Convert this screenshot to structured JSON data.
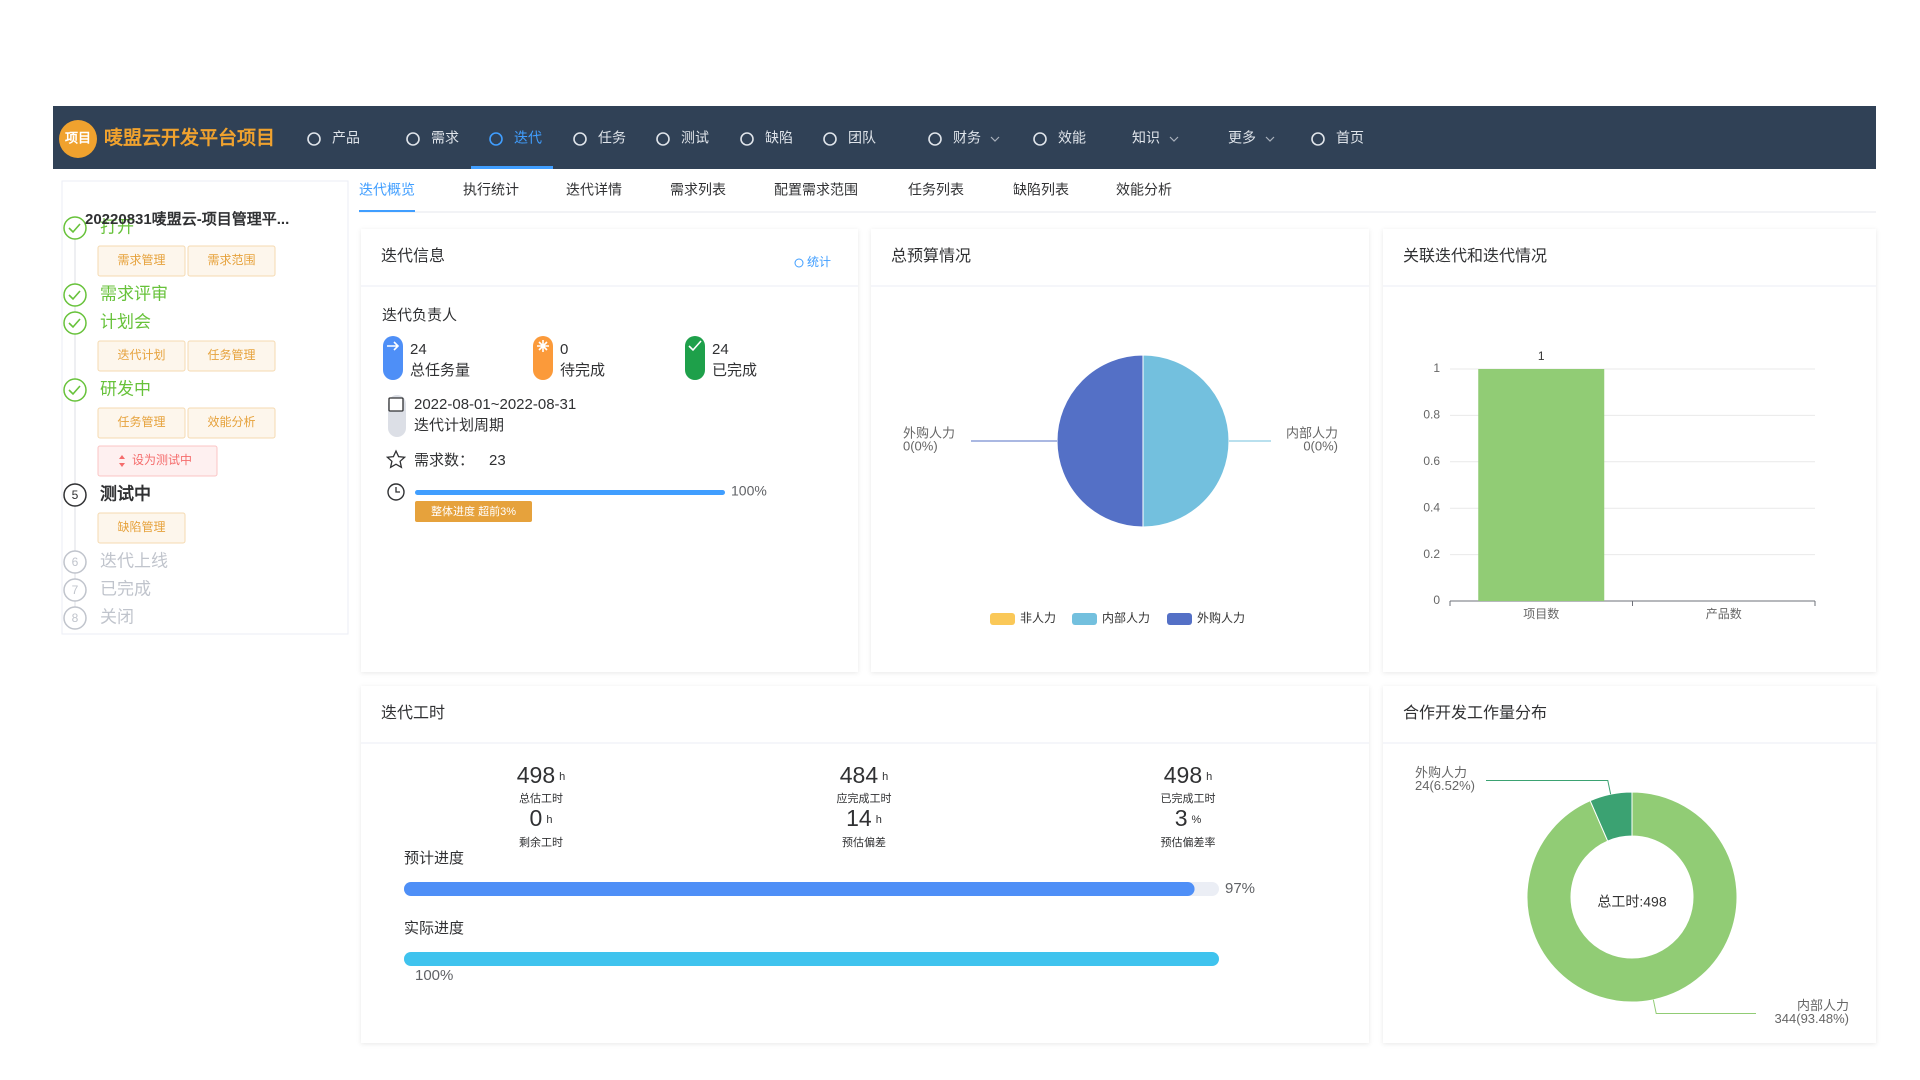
{
  "nav": {
    "logo": "项目",
    "title": "唛盟云开发平台项目",
    "active": 2,
    "items": [
      {
        "label": "产品"
      },
      {
        "label": "需求"
      },
      {
        "label": "迭代"
      },
      {
        "label": "任务"
      },
      {
        "label": "测试"
      },
      {
        "label": "缺陷"
      },
      {
        "label": "团队"
      },
      {
        "label": "财务",
        "dropdown": true
      },
      {
        "label": "效能"
      },
      {
        "label": "知识",
        "dropdown": true,
        "icon": false
      },
      {
        "label": "更多",
        "dropdown": true,
        "icon": false
      },
      {
        "label": "首页"
      }
    ]
  },
  "sidebar": {
    "title": "20220831唛盟云-项目管理平...",
    "steps": [
      {
        "label": "打开",
        "status": "done",
        "buttons": [
          "需求管理",
          "需求范围"
        ]
      },
      {
        "label": "需求评审",
        "status": "done"
      },
      {
        "label": "计划会",
        "status": "done",
        "buttons": [
          "迭代计划",
          "任务管理"
        ]
      },
      {
        "label": "研发中",
        "status": "done",
        "buttons": [
          "任务管理",
          "效能分析"
        ],
        "action": "设为测试中"
      },
      {
        "number": 5,
        "label": "测试中",
        "status": "current",
        "buttons": [
          "缺陷管理"
        ]
      },
      {
        "number": 6,
        "label": "迭代上线",
        "status": "pending"
      },
      {
        "number": 7,
        "label": "已完成",
        "status": "pending"
      },
      {
        "number": 8,
        "label": "关闭",
        "status": "pending"
      }
    ]
  },
  "tabs": {
    "active": 0,
    "items": [
      "迭代概览",
      "执行统计",
      "迭代详情",
      "需求列表",
      "配置需求范围",
      "任务列表",
      "缺陷列表",
      "效能分析"
    ]
  },
  "iteration_info": {
    "title": "迭代信息",
    "link": "统计",
    "owner_label": "迭代负责人",
    "stats": [
      {
        "value": 24,
        "label": "总任务量",
        "color": "#4e8ff7"
      },
      {
        "value": 0,
        "label": "待完成",
        "color": "#fb9a3a"
      },
      {
        "value": 24,
        "label": "已完成",
        "color": "#1ea04a"
      }
    ],
    "period": "2022-08-01~2022-08-31",
    "period_label": "迭代计划周期",
    "demand_label": "需求数：",
    "demand_count": 23,
    "progress": {
      "value": 100,
      "value_label": "100%",
      "xlim": [
        0,
        100
      ],
      "badge": "整体进度 超前3%"
    }
  },
  "budget": {
    "title": "总预算情况",
    "chart_data": {
      "type": "pie",
      "series": [
        {
          "name": "非人力",
          "color": "#fac858",
          "value": null
        },
        {
          "name": "内部人力",
          "color": "#73c0de",
          "value": 0,
          "value_label": "0(0%)"
        },
        {
          "name": "外购人力",
          "color": "#5470c6",
          "value": 0,
          "value_label": "0(0%)"
        }
      ]
    }
  },
  "relation": {
    "title": "关联迭代和迭代情况",
    "chart_data": {
      "type": "bar",
      "categories": [
        "项目数",
        "产品数"
      ],
      "values": [
        1,
        0
      ],
      "color": "#91cc75",
      "ylim": [
        0,
        1
      ],
      "yticks": [
        0,
        0.2,
        0.4,
        0.6,
        0.8,
        1
      ],
      "grid": true
    }
  },
  "hours": {
    "title": "迭代工时",
    "metrics": [
      {
        "value": 498,
        "unit": "h",
        "label": "总估工时"
      },
      {
        "value": 484,
        "unit": "h",
        "label": "应完成工时"
      },
      {
        "value": 498,
        "unit": "h",
        "label": "已完成工时"
      },
      {
        "value": 0,
        "unit": "h",
        "label": "剩余工时"
      },
      {
        "value": 14,
        "unit": "h",
        "label": "预估偏差"
      },
      {
        "value": 3,
        "unit": "%",
        "label": "预估偏差率"
      }
    ],
    "progress": [
      {
        "label": "预计进度",
        "value": 97,
        "value_label": "97%",
        "xlim": [
          0,
          100
        ],
        "color": "#4e8ff7"
      },
      {
        "label": "实际进度",
        "value": 100,
        "value_label": "100%",
        "xlim": [
          0,
          100
        ],
        "color": "#3fc3ee",
        "value_label_position": "below"
      }
    ]
  },
  "workload": {
    "title": "合作开发工作量分布",
    "chart_data": {
      "type": "donut",
      "center_label": "总工时:498",
      "series": [
        {
          "name": "内部人力",
          "color": "#91cc75",
          "value": 344,
          "value_label": "344(93.48%)"
        },
        {
          "name": "外购人力",
          "color": "#3ba272",
          "value": 24,
          "value_label": "24(6.52%)"
        }
      ]
    }
  }
}
